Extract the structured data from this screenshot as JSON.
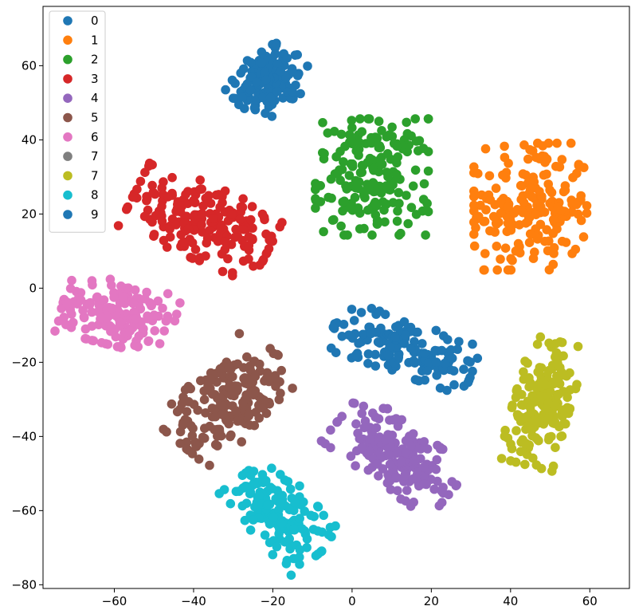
{
  "chart_data": {
    "type": "scatter",
    "title": "",
    "xlabel": "",
    "ylabel": "",
    "xlim": [
      -78,
      70
    ],
    "ylim": [
      -81,
      76
    ],
    "xticks": [
      -60,
      -40,
      -20,
      0,
      20,
      40,
      60
    ],
    "yticks": [
      -80,
      -60,
      -40,
      -20,
      0,
      20,
      40,
      60
    ],
    "grid": false,
    "legend_position": "top-left",
    "series": [
      {
        "name": "0",
        "color": "#1f77b4",
        "clusters": [
          {
            "center": [
              -21,
              56
            ],
            "spread": [
              7,
              6
            ],
            "angle": 40,
            "n": 140
          }
        ]
      },
      {
        "name": "1",
        "color": "#ff7f0e",
        "clusters": [
          {
            "center": [
              45,
              22
            ],
            "spread": [
              10,
              12
            ],
            "angle": 0,
            "n": 200
          }
        ]
      },
      {
        "name": "2",
        "color": "#2ca02c",
        "clusters": [
          {
            "center": [
              5,
              30
            ],
            "spread": [
              10,
              11
            ],
            "angle": 0,
            "n": 190
          }
        ]
      },
      {
        "name": "3",
        "color": "#d62728",
        "clusters": [
          {
            "center": [
              -38,
              18
            ],
            "spread": [
              13,
              7
            ],
            "angle": -25,
            "n": 190
          }
        ]
      },
      {
        "name": "4",
        "color": "#9467bd",
        "clusters": [
          {
            "center": [
              11,
              -45
            ],
            "spread": [
              12,
              6
            ],
            "angle": -38,
            "n": 170
          }
        ]
      },
      {
        "name": "5",
        "color": "#8c564b",
        "clusters": [
          {
            "center": [
              -31,
              -30
            ],
            "spread": [
              12,
              7
            ],
            "angle": 48,
            "n": 200
          }
        ]
      },
      {
        "name": "6",
        "color": "#e377c2",
        "clusters": [
          {
            "center": [
              -59,
              -7
            ],
            "spread": [
              10,
              6
            ],
            "angle": -15,
            "n": 160
          }
        ]
      },
      {
        "name": "7",
        "color": "#7f7f7f",
        "clusters": []
      },
      {
        "name": "7",
        "color": "#bcbd22",
        "clusters": [
          {
            "center": [
              48,
              -31
            ],
            "spread": [
              12,
              5
            ],
            "angle": 75,
            "n": 180
          }
        ]
      },
      {
        "name": "8",
        "color": "#17becf",
        "clusters": [
          {
            "center": [
              -18,
              -61
            ],
            "spread": [
              10,
              6
            ],
            "angle": -50,
            "n": 160
          }
        ]
      },
      {
        "name": "9",
        "color": "#1f77b4",
        "clusters": [
          {
            "center": [
              13,
              -16
            ],
            "spread": [
              13,
              5
            ],
            "angle": -20,
            "n": 150
          }
        ]
      }
    ]
  }
}
